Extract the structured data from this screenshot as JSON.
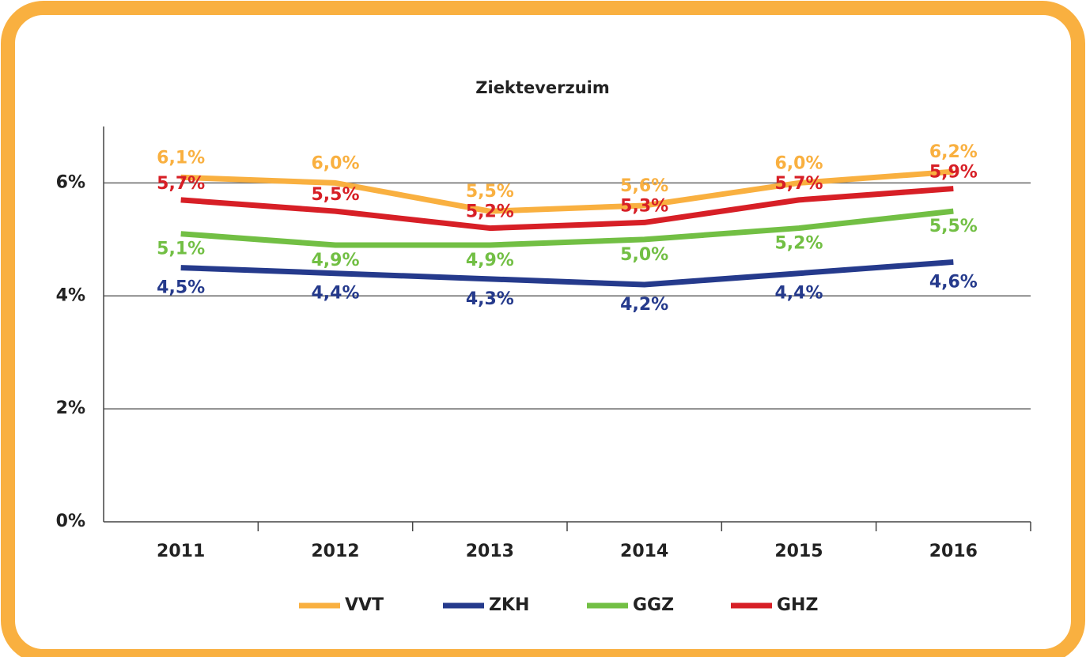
{
  "chart_data": {
    "type": "line",
    "title": "Ziekteverzuim",
    "categories": [
      "2011",
      "2012",
      "2013",
      "2014",
      "2015",
      "2016"
    ],
    "series": [
      {
        "name": "VVT",
        "color": "#f9b040",
        "values": [
          6.1,
          6.0,
          5.5,
          5.6,
          6.0,
          6.2
        ],
        "value_labels": [
          "6,1%",
          "6,0%",
          "5,5%",
          "5,6%",
          "6,0%",
          "6,2%"
        ]
      },
      {
        "name": "ZKH",
        "color": "#253a8c",
        "values": [
          4.5,
          4.4,
          4.3,
          4.2,
          4.4,
          4.6
        ],
        "value_labels": [
          "4,5%",
          "4,4%",
          "4,3%",
          "4,2%",
          "4,4%",
          "4,6%"
        ]
      },
      {
        "name": "GGZ",
        "color": "#72bf44",
        "values": [
          5.1,
          4.9,
          4.9,
          5.0,
          5.2,
          5.5
        ],
        "value_labels": [
          "5,1%",
          "4,9%",
          "4,9%",
          "5,0%",
          "5,2%",
          "5,5%"
        ]
      },
      {
        "name": "GHZ",
        "color": "#d71f26",
        "values": [
          5.7,
          5.5,
          5.2,
          5.3,
          5.7,
          5.9
        ],
        "value_labels": [
          "5,7%",
          "5,5%",
          "5,2%",
          "5,3%",
          "5,7%",
          "5,9%"
        ]
      }
    ],
    "ylim": [
      0,
      7
    ],
    "yticks": [
      {
        "value": 0,
        "label": "0%"
      },
      {
        "value": 2,
        "label": "2%"
      },
      {
        "value": 4,
        "label": "4%"
      },
      {
        "value": 6,
        "label": "6%"
      }
    ],
    "grid": true,
    "legend": "bottom"
  }
}
